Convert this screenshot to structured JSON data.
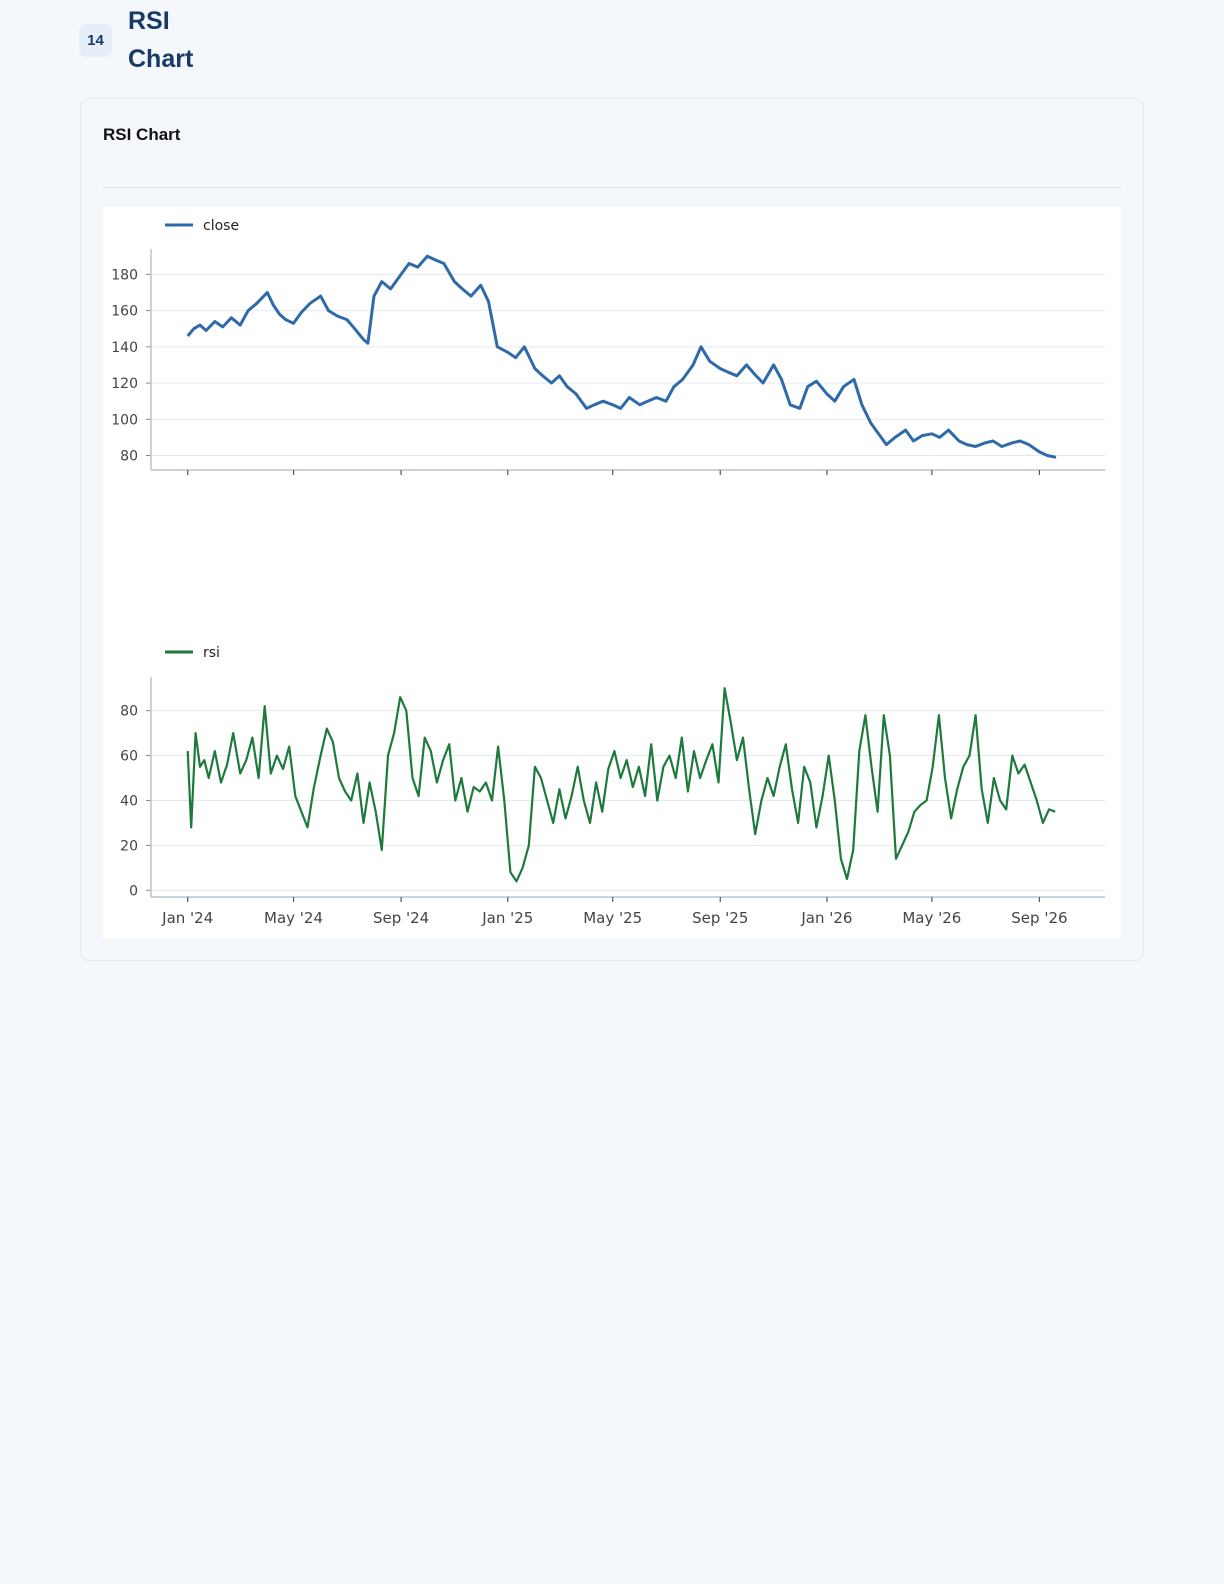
{
  "page": {
    "badge": "14",
    "title": "RSI Chart"
  },
  "card": {
    "title": "RSI Chart"
  },
  "colors": {
    "close": "#2e6aa9",
    "rsi": "#1e7a3c",
    "grid": "#e4e9f0",
    "axis": "#b9c3d0"
  },
  "chart_data": [
    {
      "type": "line",
      "legend": "close",
      "series": [
        {
          "name": "close",
          "color": "#2e6aa9",
          "x": [
            "2024-01-01",
            "2024-01-08",
            "2024-01-15",
            "2024-01-22",
            "2024-02-01",
            "2024-02-10",
            "2024-02-20",
            "2024-03-01",
            "2024-03-10",
            "2024-03-20",
            "2024-04-01",
            "2024-04-08",
            "2024-04-15",
            "2024-04-22",
            "2024-05-01",
            "2024-05-10",
            "2024-05-20",
            "2024-06-01",
            "2024-06-10",
            "2024-06-20",
            "2024-07-01",
            "2024-07-10",
            "2024-07-20",
            "2024-07-25",
            "2024-08-01",
            "2024-08-10",
            "2024-08-20",
            "2024-09-01",
            "2024-09-10",
            "2024-09-20",
            "2024-10-01",
            "2024-10-10",
            "2024-10-20",
            "2024-11-01",
            "2024-11-10",
            "2024-11-20",
            "2024-12-01",
            "2024-12-10",
            "2024-12-20",
            "2025-01-01",
            "2025-01-10",
            "2025-01-20",
            "2025-02-01",
            "2025-02-10",
            "2025-02-20",
            "2025-03-01",
            "2025-03-10",
            "2025-03-20",
            "2025-04-01",
            "2025-04-10",
            "2025-04-20",
            "2025-05-01",
            "2025-05-10",
            "2025-05-20",
            "2025-06-01",
            "2025-06-10",
            "2025-06-20",
            "2025-07-01",
            "2025-07-10",
            "2025-07-20",
            "2025-08-01",
            "2025-08-10",
            "2025-08-20",
            "2025-09-01",
            "2025-09-10",
            "2025-09-20",
            "2025-10-01",
            "2025-10-10",
            "2025-10-20",
            "2025-11-01",
            "2025-11-10",
            "2025-11-20",
            "2025-12-01",
            "2025-12-10",
            "2025-12-20",
            "2026-01-01",
            "2026-01-10",
            "2026-01-20",
            "2026-02-01",
            "2026-02-10",
            "2026-02-20",
            "2026-03-01",
            "2026-03-10",
            "2026-03-20",
            "2026-04-01",
            "2026-04-10",
            "2026-04-20",
            "2026-05-01",
            "2026-05-10",
            "2026-05-20",
            "2026-06-01",
            "2026-06-10",
            "2026-06-20",
            "2026-07-01",
            "2026-07-10",
            "2026-07-20",
            "2026-08-01",
            "2026-08-10",
            "2026-08-20",
            "2026-09-01",
            "2026-09-10",
            "2026-09-20"
          ],
          "values": [
            146,
            150,
            152,
            149,
            154,
            151,
            156,
            152,
            160,
            164,
            170,
            163,
            158,
            155,
            153,
            159,
            164,
            168,
            160,
            157,
            155,
            150,
            144,
            142,
            168,
            176,
            172,
            180,
            186,
            184,
            190,
            188,
            186,
            176,
            172,
            168,
            174,
            165,
            140,
            137,
            134,
            140,
            128,
            124,
            120,
            124,
            118,
            114,
            106,
            108,
            110,
            108,
            106,
            112,
            108,
            110,
            112,
            110,
            118,
            122,
            130,
            140,
            132,
            128,
            126,
            124,
            130,
            125,
            120,
            130,
            122,
            108,
            106,
            118,
            121,
            114,
            110,
            118,
            122,
            108,
            98,
            92,
            86,
            90,
            94,
            88,
            91,
            92,
            90,
            94,
            88,
            86,
            85,
            87,
            88,
            85,
            87,
            88,
            86,
            82,
            80,
            79
          ]
        }
      ],
      "ylim": [
        72,
        194
      ],
      "yticks": [
        "80",
        "100",
        "120",
        "140",
        "160",
        "180"
      ],
      "xlim": [
        "2023-11-20",
        "2026-11-15"
      ],
      "xticks": [
        "2024-01-01",
        "2024-05-01",
        "2024-09-01",
        "2025-01-01",
        "2025-05-01",
        "2025-09-01",
        "2026-01-01",
        "2026-05-01",
        "2026-09-01"
      ],
      "grid": true,
      "legend_position": "top-left"
    },
    {
      "type": "line",
      "legend": "rsi",
      "series": [
        {
          "name": "rsi",
          "color": "#1e7a3c",
          "x": [
            "2024-01-01",
            "2024-01-05",
            "2024-01-10",
            "2024-01-15",
            "2024-01-20",
            "2024-01-25",
            "2024-02-01",
            "2024-02-08",
            "2024-02-15",
            "2024-02-22",
            "2024-03-01",
            "2024-03-08",
            "2024-03-15",
            "2024-03-22",
            "2024-03-29",
            "2024-04-05",
            "2024-04-12",
            "2024-04-19",
            "2024-04-26",
            "2024-05-03",
            "2024-05-10",
            "2024-05-17",
            "2024-05-24",
            "2024-06-01",
            "2024-06-08",
            "2024-06-15",
            "2024-06-22",
            "2024-06-29",
            "2024-07-06",
            "2024-07-13",
            "2024-07-20",
            "2024-07-27",
            "2024-08-03",
            "2024-08-10",
            "2024-08-17",
            "2024-08-24",
            "2024-08-31",
            "2024-09-07",
            "2024-09-14",
            "2024-09-21",
            "2024-09-28",
            "2024-10-05",
            "2024-10-12",
            "2024-10-19",
            "2024-10-26",
            "2024-11-02",
            "2024-11-09",
            "2024-11-16",
            "2024-11-23",
            "2024-11-30",
            "2024-12-07",
            "2024-12-14",
            "2024-12-21",
            "2024-12-28",
            "2025-01-04",
            "2025-01-11",
            "2025-01-18",
            "2025-01-25",
            "2025-02-01",
            "2025-02-08",
            "2025-02-15",
            "2025-02-22",
            "2025-03-01",
            "2025-03-08",
            "2025-03-15",
            "2025-03-22",
            "2025-03-29",
            "2025-04-05",
            "2025-04-12",
            "2025-04-19",
            "2025-04-26",
            "2025-05-03",
            "2025-05-10",
            "2025-05-17",
            "2025-05-24",
            "2025-05-31",
            "2025-06-07",
            "2025-06-14",
            "2025-06-21",
            "2025-06-28",
            "2025-07-05",
            "2025-07-12",
            "2025-07-19",
            "2025-07-26",
            "2025-08-02",
            "2025-08-09",
            "2025-08-16",
            "2025-08-23",
            "2025-08-30",
            "2025-09-06",
            "2025-09-13",
            "2025-09-20",
            "2025-09-27",
            "2025-10-04",
            "2025-10-11",
            "2025-10-18",
            "2025-10-25",
            "2025-11-01",
            "2025-11-08",
            "2025-11-15",
            "2025-11-22",
            "2025-11-29",
            "2025-12-06",
            "2025-12-13",
            "2025-12-20",
            "2025-12-27",
            "2026-01-03",
            "2026-01-10",
            "2026-01-17",
            "2026-01-24",
            "2026-01-31",
            "2026-02-07",
            "2026-02-14",
            "2026-02-21",
            "2026-02-28",
            "2026-03-07",
            "2026-03-14",
            "2026-03-21",
            "2026-03-28",
            "2026-04-04",
            "2026-04-11",
            "2026-04-18",
            "2026-04-25",
            "2026-05-02",
            "2026-05-09",
            "2026-05-16",
            "2026-05-23",
            "2026-05-30",
            "2026-06-06",
            "2026-06-13",
            "2026-06-20",
            "2026-06-27",
            "2026-07-04",
            "2026-07-11",
            "2026-07-18",
            "2026-07-25",
            "2026-08-01",
            "2026-08-08",
            "2026-08-15",
            "2026-08-22",
            "2026-08-29",
            "2026-09-05",
            "2026-09-12",
            "2026-09-19"
          ],
          "values": [
            62,
            28,
            70,
            55,
            58,
            50,
            62,
            48,
            56,
            70,
            52,
            58,
            68,
            50,
            82,
            52,
            60,
            54,
            64,
            42,
            35,
            28,
            45,
            60,
            72,
            66,
            50,
            44,
            40,
            52,
            30,
            48,
            35,
            18,
            60,
            70,
            86,
            80,
            50,
            42,
            68,
            62,
            48,
            58,
            65,
            40,
            50,
            35,
            46,
            44,
            48,
            40,
            64,
            40,
            8,
            4,
            10,
            20,
            55,
            50,
            40,
            30,
            45,
            32,
            42,
            55,
            40,
            30,
            48,
            35,
            54,
            62,
            50,
            58,
            46,
            55,
            42,
            65,
            40,
            55,
            60,
            50,
            68,
            44,
            62,
            50,
            58,
            65,
            48,
            90,
            75,
            58,
            68,
            45,
            25,
            40,
            50,
            42,
            55,
            65,
            45,
            30,
            55,
            48,
            28,
            42,
            60,
            40,
            14,
            5,
            18,
            62,
            78,
            55,
            35,
            78,
            60,
            14,
            20,
            26,
            35,
            38,
            40,
            55,
            78,
            50,
            32,
            45,
            55,
            60,
            78,
            45,
            30,
            50,
            40,
            36,
            60,
            52,
            56,
            48,
            40,
            30,
            36,
            35
          ]
        }
      ],
      "ylim": [
        -3,
        95
      ],
      "yticks": [
        "0",
        "20",
        "40",
        "60",
        "80"
      ],
      "xlim": [
        "2023-11-20",
        "2026-11-15"
      ],
      "xticks": [
        "2024-01-01",
        "2024-05-01",
        "2024-09-01",
        "2025-01-01",
        "2025-05-01",
        "2025-09-01",
        "2026-01-01",
        "2026-05-01",
        "2026-09-01"
      ],
      "xtick_labels": [
        "Jan '24",
        "May '24",
        "Sep '24",
        "Jan '25",
        "May '25",
        "Sep '25",
        "Jan '26",
        "May '26",
        "Sep '26"
      ],
      "grid": true,
      "legend_position": "top-left"
    }
  ]
}
